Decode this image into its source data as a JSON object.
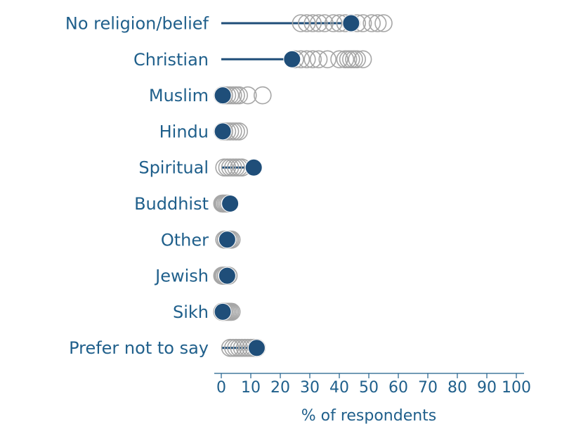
{
  "chart_data": {
    "type": "scatter",
    "title": "",
    "xlabel": "% of respondents",
    "ylabel": "",
    "xlim": [
      0,
      100
    ],
    "xticks": [
      0,
      10,
      20,
      30,
      40,
      50,
      60,
      70,
      80,
      90,
      100
    ],
    "grid": false,
    "colors": {
      "highlight": "#1f4e79",
      "comparison": "#a6a6a6",
      "text": "#1f5f8b"
    },
    "categories": [
      {
        "label": "No religion/belief",
        "value": 44,
        "others": [
          27,
          29,
          31,
          33,
          35,
          38,
          40,
          42,
          44,
          46,
          48,
          51,
          53,
          55
        ]
      },
      {
        "label": "Christian",
        "value": 24,
        "others": [
          25,
          27,
          29,
          31,
          33,
          36,
          40,
          42,
          43,
          44,
          45,
          46,
          48
        ]
      },
      {
        "label": "Muslim",
        "value": 0.5,
        "others": [
          0.5,
          1,
          2,
          3,
          4,
          5,
          6,
          9,
          14
        ]
      },
      {
        "label": "Hindu",
        "value": 0.5,
        "others": [
          0.5,
          1,
          2,
          3,
          4,
          5,
          6
        ]
      },
      {
        "label": "Spiritual",
        "value": 11,
        "others": [
          1,
          2,
          3,
          4,
          5,
          6,
          7
        ]
      },
      {
        "label": "Buddhist",
        "value": 3,
        "others": [
          0.3,
          0.6,
          1,
          1.5,
          2,
          2.5
        ]
      },
      {
        "label": "Other",
        "value": 2,
        "others": [
          1,
          1.5,
          2,
          2.5,
          3,
          3.5
        ]
      },
      {
        "label": "Jewish",
        "value": 2,
        "others": [
          0.3,
          0.6,
          1,
          1.5,
          2,
          2.5
        ]
      },
      {
        "label": "Sikh",
        "value": 0.5,
        "others": [
          0.3,
          0.6,
          1,
          1.5,
          2,
          2.5,
          3,
          3.5
        ]
      },
      {
        "label": "Prefer not to say",
        "value": 12,
        "others": [
          3,
          4,
          5,
          6,
          7,
          8,
          9,
          10,
          11,
          12
        ]
      }
    ]
  }
}
